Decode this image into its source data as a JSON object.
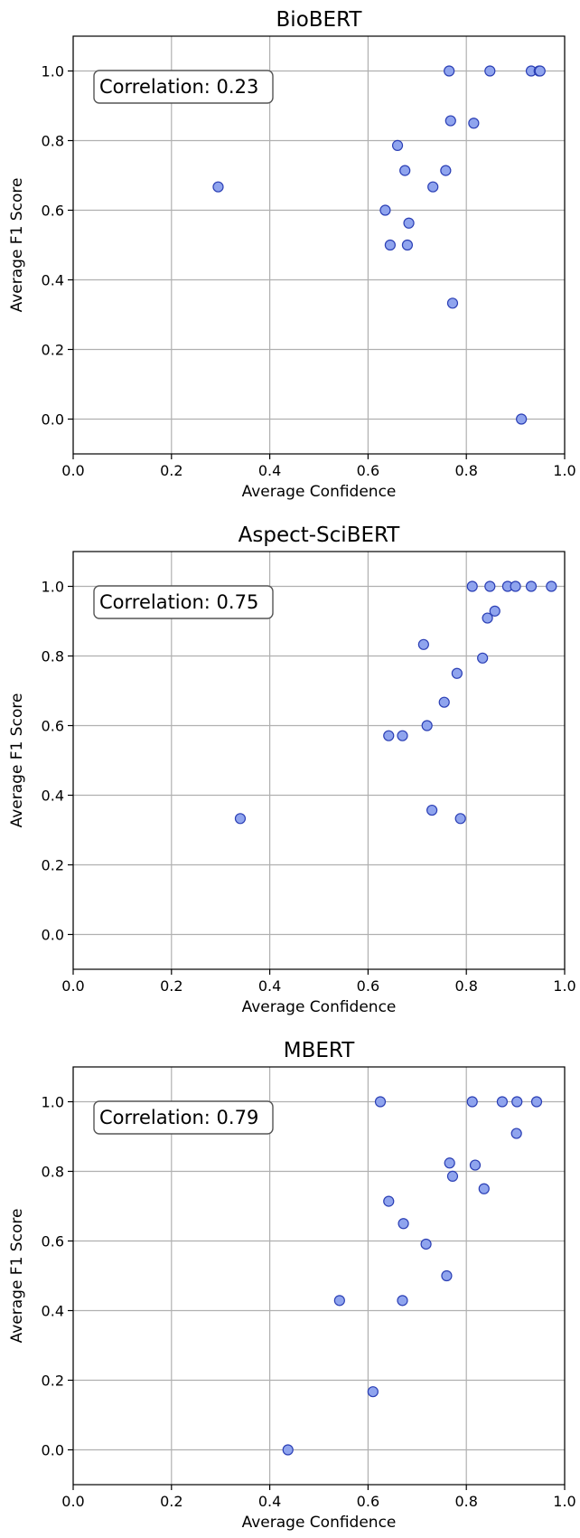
{
  "chart_data": [
    {
      "type": "scatter",
      "title": "BioBERT",
      "xlabel": "Average Confidence",
      "ylabel": "Average F1 Score",
      "annotation": "Correlation: 0.23",
      "xlim": [
        0.0,
        1.0
      ],
      "ylim": [
        -0.1,
        1.1
      ],
      "xticks": [
        "0.0",
        "0.2",
        "0.4",
        "0.6",
        "0.8",
        "1.0"
      ],
      "yticks": [
        "0.0",
        "0.2",
        "0.4",
        "0.6",
        "0.8",
        "1.0"
      ],
      "grid": true,
      "marker_color": "#8fa4ee",
      "marker_edge": "#2b3fb5",
      "points": [
        {
          "x": 0.295,
          "y": 0.667
        },
        {
          "x": 0.635,
          "y": 0.6
        },
        {
          "x": 0.645,
          "y": 0.5
        },
        {
          "x": 0.66,
          "y": 0.786
        },
        {
          "x": 0.675,
          "y": 0.714
        },
        {
          "x": 0.68,
          "y": 0.5
        },
        {
          "x": 0.683,
          "y": 0.563
        },
        {
          "x": 0.732,
          "y": 0.667
        },
        {
          "x": 0.758,
          "y": 0.714
        },
        {
          "x": 0.765,
          "y": 1.0
        },
        {
          "x": 0.768,
          "y": 0.857
        },
        {
          "x": 0.772,
          "y": 0.333
        },
        {
          "x": 0.815,
          "y": 0.85
        },
        {
          "x": 0.848,
          "y": 1.0
        },
        {
          "x": 0.912,
          "y": 0.0
        },
        {
          "x": 0.932,
          "y": 1.0
        },
        {
          "x": 0.948,
          "y": 1.0
        },
        {
          "x": 0.95,
          "y": 1.0
        }
      ]
    },
    {
      "type": "scatter",
      "title": "Aspect-SciBERT",
      "xlabel": "Average Confidence",
      "ylabel": "Average F1 Score",
      "annotation": "Correlation: 0.75",
      "xlim": [
        0.0,
        1.0
      ],
      "ylim": [
        -0.1,
        1.1
      ],
      "xticks": [
        "0.0",
        "0.2",
        "0.4",
        "0.6",
        "0.8",
        "1.0"
      ],
      "yticks": [
        "0.0",
        "0.2",
        "0.4",
        "0.6",
        "0.8",
        "1.0"
      ],
      "grid": true,
      "marker_color": "#8fa4ee",
      "marker_edge": "#2b3fb5",
      "points": [
        {
          "x": 0.34,
          "y": 0.333
        },
        {
          "x": 0.642,
          "y": 0.571
        },
        {
          "x": 0.67,
          "y": 0.571
        },
        {
          "x": 0.713,
          "y": 0.833
        },
        {
          "x": 0.72,
          "y": 0.6
        },
        {
          "x": 0.73,
          "y": 0.357
        },
        {
          "x": 0.755,
          "y": 0.667
        },
        {
          "x": 0.781,
          "y": 0.75
        },
        {
          "x": 0.788,
          "y": 0.333
        },
        {
          "x": 0.812,
          "y": 1.0
        },
        {
          "x": 0.833,
          "y": 0.794
        },
        {
          "x": 0.843,
          "y": 0.909
        },
        {
          "x": 0.848,
          "y": 1.0
        },
        {
          "x": 0.858,
          "y": 0.929
        },
        {
          "x": 0.884,
          "y": 1.0
        },
        {
          "x": 0.9,
          "y": 1.0
        },
        {
          "x": 0.932,
          "y": 1.0
        },
        {
          "x": 0.973,
          "y": 1.0
        }
      ]
    },
    {
      "type": "scatter",
      "title": "MBERT",
      "xlabel": "Average Confidence",
      "ylabel": "Average F1 Score",
      "annotation": "Correlation: 0.79",
      "xlim": [
        0.0,
        1.0
      ],
      "ylim": [
        -0.1,
        1.1
      ],
      "xticks": [
        "0.0",
        "0.2",
        "0.4",
        "0.6",
        "0.8",
        "1.0"
      ],
      "yticks": [
        "0.0",
        "0.2",
        "0.4",
        "0.6",
        "0.8",
        "1.0"
      ],
      "grid": true,
      "marker_color": "#8fa4ee",
      "marker_edge": "#2b3fb5",
      "points": [
        {
          "x": 0.437,
          "y": 0.0
        },
        {
          "x": 0.542,
          "y": 0.429
        },
        {
          "x": 0.61,
          "y": 0.167
        },
        {
          "x": 0.625,
          "y": 1.0
        },
        {
          "x": 0.642,
          "y": 0.714
        },
        {
          "x": 0.672,
          "y": 0.65
        },
        {
          "x": 0.67,
          "y": 0.429
        },
        {
          "x": 0.718,
          "y": 0.591
        },
        {
          "x": 0.76,
          "y": 0.5
        },
        {
          "x": 0.766,
          "y": 0.824
        },
        {
          "x": 0.772,
          "y": 0.786
        },
        {
          "x": 0.812,
          "y": 1.0
        },
        {
          "x": 0.818,
          "y": 0.818
        },
        {
          "x": 0.836,
          "y": 0.75
        },
        {
          "x": 0.873,
          "y": 1.0
        },
        {
          "x": 0.902,
          "y": 0.909
        },
        {
          "x": 0.903,
          "y": 1.0
        },
        {
          "x": 0.943,
          "y": 1.0
        }
      ]
    }
  ]
}
